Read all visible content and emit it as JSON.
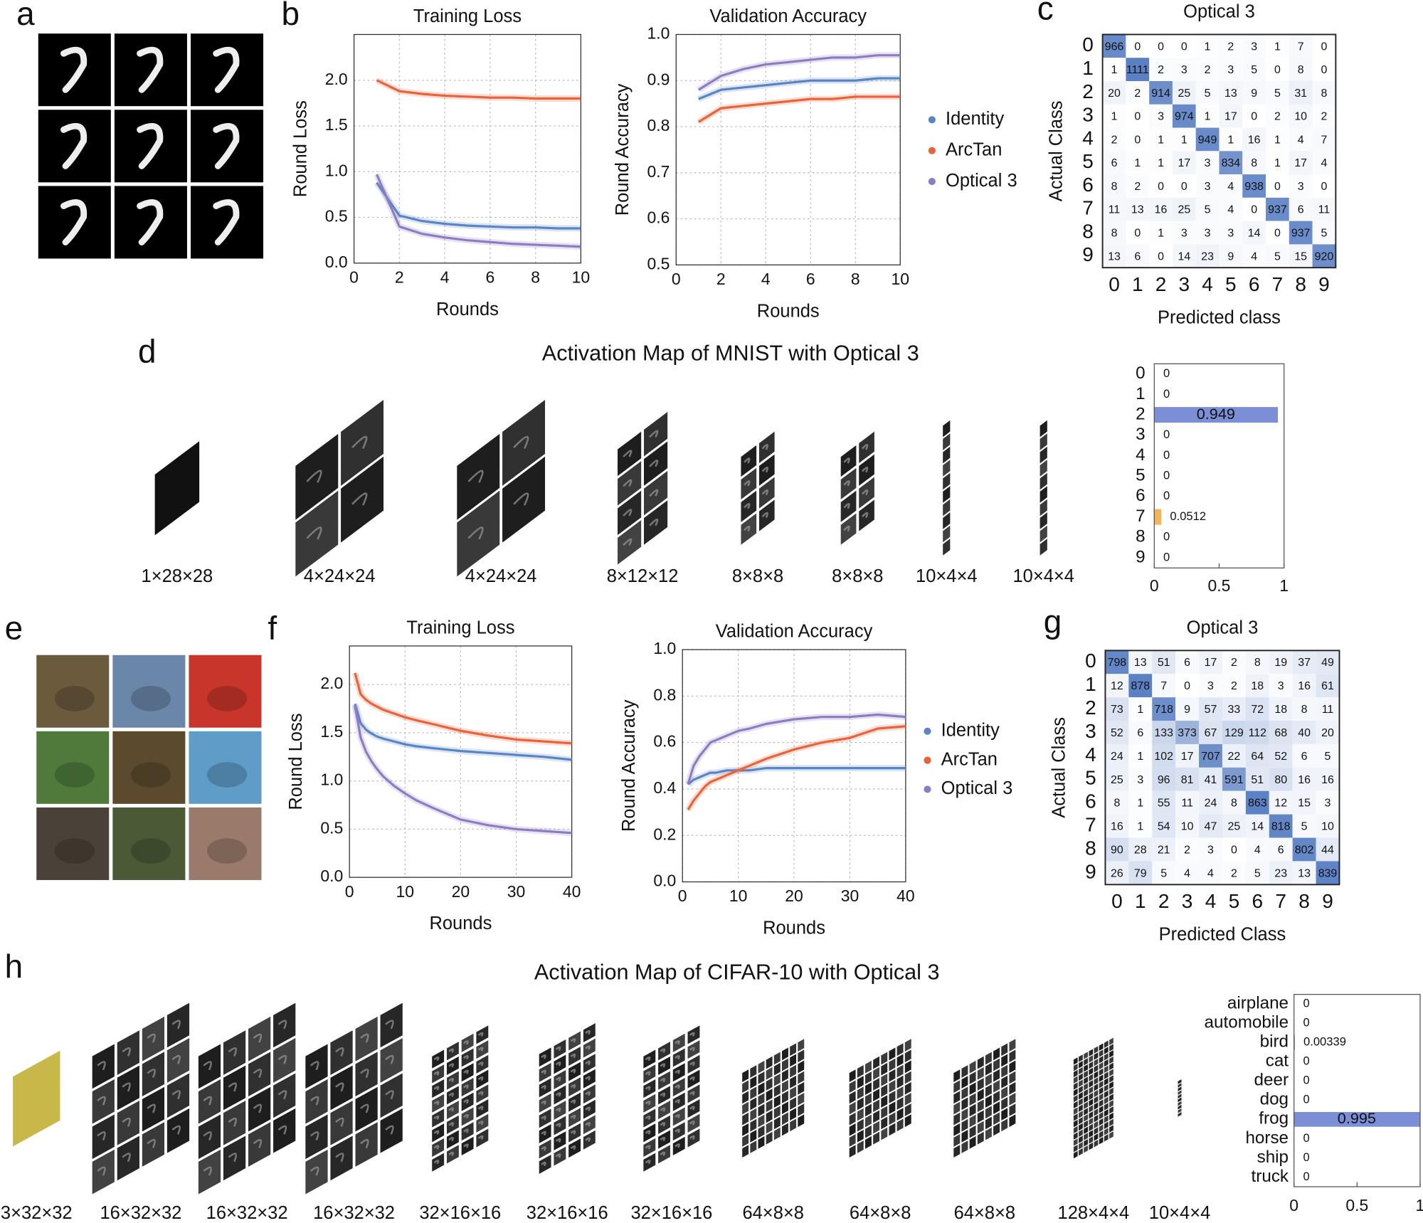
{
  "panel_labels": [
    "a",
    "b",
    "c",
    "d",
    "e",
    "f",
    "g",
    "h"
  ],
  "chart_data": [
    {
      "type": "line",
      "title": "Training Loss",
      "xlabel": "Rounds",
      "ylabel": "Round Loss",
      "x": [
        1,
        2,
        3,
        4,
        5,
        6,
        7,
        8,
        9,
        10
      ],
      "series": [
        {
          "color": "#5b84c4",
          "values": [
            0.88,
            0.52,
            0.46,
            0.43,
            0.41,
            0.4,
            0.39,
            0.39,
            0.38,
            0.38
          ]
        },
        {
          "color": "#e8623a",
          "values": [
            2.0,
            1.88,
            1.85,
            1.83,
            1.82,
            1.81,
            1.81,
            1.8,
            1.8,
            1.8
          ]
        },
        {
          "color": "#8e7cc3",
          "values": [
            0.97,
            0.4,
            0.32,
            0.28,
            0.25,
            0.23,
            0.21,
            0.2,
            0.19,
            0.18
          ]
        }
      ],
      "xlim": [
        0,
        10
      ],
      "xticks": [
        0,
        2,
        4,
        6,
        8,
        10
      ],
      "ylim": [
        0,
        2.5
      ],
      "yticks": [
        {
          "value": 0,
          "label": "0.0"
        },
        0.5,
        {
          "value": 1,
          "label": "1.0"
        },
        1.5,
        {
          "value": 2,
          "label": "2.0"
        }
      ],
      "grid": true
    },
    {
      "type": "line",
      "title": "Validation Accuracy",
      "xlabel": "Rounds",
      "ylabel": "Round Accuracy",
      "x": [
        1,
        2,
        3,
        4,
        5,
        6,
        7,
        8,
        9,
        10
      ],
      "series": [
        {
          "name": "Identity",
          "color": "#5b84c4",
          "values": [
            0.86,
            0.88,
            0.885,
            0.89,
            0.895,
            0.9,
            0.9,
            0.9,
            0.905,
            0.905
          ]
        },
        {
          "name": "ArcTan",
          "color": "#e8623a",
          "values": [
            0.81,
            0.84,
            0.845,
            0.85,
            0.855,
            0.86,
            0.86,
            0.865,
            0.865,
            0.865
          ]
        },
        {
          "name": "Optical 3",
          "color": "#8e7cc3",
          "values": [
            0.88,
            0.91,
            0.925,
            0.935,
            0.94,
            0.945,
            0.95,
            0.95,
            0.955,
            0.955
          ]
        }
      ],
      "xlim": [
        0,
        10
      ],
      "xticks": [
        0,
        2,
        4,
        6,
        8,
        10
      ],
      "ylim": [
        0.5,
        1.0
      ],
      "yticks": [
        0.5,
        0.6,
        0.7,
        0.8,
        0.9,
        {
          "value": 1,
          "label": "1.0"
        }
      ],
      "grid": true,
      "legend": "right"
    },
    {
      "type": "heatmap",
      "title": "Optical 3",
      "xlabel": "Predicted class",
      "ylabel": "Actual Class",
      "x_categories": [
        0,
        1,
        2,
        3,
        4,
        5,
        6,
        7,
        8,
        9
      ],
      "y_categories": [
        0,
        1,
        2,
        3,
        4,
        5,
        6,
        7,
        8,
        9
      ],
      "color": "#5b80c4",
      "values": [
        [
          966,
          0,
          0,
          0,
          1,
          2,
          3,
          1,
          7,
          0
        ],
        [
          1,
          1111,
          2,
          3,
          2,
          3,
          5,
          0,
          8,
          0
        ],
        [
          20,
          2,
          914,
          25,
          5,
          13,
          9,
          5,
          31,
          8
        ],
        [
          1,
          0,
          3,
          974,
          1,
          17,
          0,
          2,
          10,
          2
        ],
        [
          2,
          0,
          1,
          1,
          949,
          1,
          16,
          1,
          4,
          7
        ],
        [
          6,
          1,
          1,
          17,
          3,
          834,
          8,
          1,
          17,
          4
        ],
        [
          8,
          2,
          0,
          0,
          3,
          4,
          938,
          0,
          3,
          0
        ],
        [
          11,
          13,
          16,
          25,
          5,
          4,
          0,
          937,
          6,
          11
        ],
        [
          8,
          0,
          1,
          3,
          3,
          3,
          14,
          0,
          937,
          5
        ],
        [
          13,
          6,
          0,
          14,
          23,
          9,
          4,
          5,
          15,
          920
        ]
      ]
    },
    {
      "type": "hbar",
      "title": "Activation Map of MNIST with Optical 3",
      "layers": [
        "1×28×28",
        "4×24×24",
        "4×24×24",
        "8×12×12",
        "8×8×8",
        "8×8×8",
        "10×4×4",
        "10×4×4"
      ],
      "categories": [
        0,
        1,
        2,
        3,
        4,
        5,
        6,
        7,
        8,
        9
      ],
      "values": [
        0,
        0,
        0.949,
        0,
        0,
        0,
        0,
        0.0512,
        0,
        0
      ],
      "colors": [
        "#d4a35a",
        "#d4a35a",
        "#7b8ed6",
        "#d4a35a",
        "#d4a35a",
        "#d4a35a",
        "#d4a35a",
        "#f5b456",
        "#d4a35a",
        "#d4a35a"
      ],
      "xlim": [
        0,
        1
      ],
      "xticks": [
        0,
        0.5,
        1
      ]
    },
    {
      "type": "line",
      "title": "Training Loss",
      "xlabel": "Rounds",
      "ylabel": "Round Loss",
      "x": [
        1,
        2,
        3,
        4,
        5,
        6,
        8,
        10,
        12,
        15,
        20,
        25,
        30,
        35,
        40
      ],
      "series": [
        {
          "color": "#5b84c4",
          "values": [
            1.8,
            1.6,
            1.53,
            1.49,
            1.46,
            1.44,
            1.41,
            1.38,
            1.36,
            1.34,
            1.31,
            1.29,
            1.27,
            1.25,
            1.22
          ]
        },
        {
          "color": "#e8623a",
          "values": [
            2.12,
            1.9,
            1.84,
            1.8,
            1.77,
            1.74,
            1.7,
            1.66,
            1.63,
            1.59,
            1.52,
            1.47,
            1.43,
            1.41,
            1.39
          ]
        },
        {
          "color": "#8e7cc3",
          "values": [
            1.78,
            1.45,
            1.3,
            1.2,
            1.12,
            1.05,
            0.95,
            0.87,
            0.8,
            0.72,
            0.6,
            0.54,
            0.5,
            0.48,
            0.46
          ]
        }
      ],
      "xlim": [
        0,
        40
      ],
      "xticks": [
        0,
        10,
        20,
        30,
        40
      ],
      "ylim": [
        0,
        2.4
      ],
      "yticks": [
        {
          "value": 0,
          "label": "0.0"
        },
        0.5,
        {
          "value": 1,
          "label": "1.0"
        },
        1.5,
        {
          "value": 2,
          "label": "2.0"
        }
      ],
      "grid": true
    },
    {
      "type": "line",
      "title": "Validation Accuracy",
      "xlabel": "Rounds",
      "ylabel": "Round Accuracy",
      "x": [
        1,
        2,
        3,
        4,
        5,
        6,
        8,
        10,
        12,
        15,
        20,
        25,
        30,
        35,
        40
      ],
      "series": [
        {
          "name": "Identity",
          "color": "#5b84c4",
          "values": [
            0.42,
            0.44,
            0.45,
            0.46,
            0.47,
            0.47,
            0.48,
            0.48,
            0.48,
            0.49,
            0.49,
            0.49,
            0.49,
            0.49,
            0.49
          ]
        },
        {
          "name": "ArcTan",
          "color": "#e8623a",
          "values": [
            0.31,
            0.35,
            0.38,
            0.41,
            0.43,
            0.44,
            0.46,
            0.48,
            0.5,
            0.53,
            0.57,
            0.6,
            0.62,
            0.66,
            0.67
          ]
        },
        {
          "name": "Optical 3",
          "color": "#8e7cc3",
          "values": [
            0.42,
            0.5,
            0.54,
            0.57,
            0.6,
            0.61,
            0.63,
            0.65,
            0.66,
            0.68,
            0.7,
            0.71,
            0.71,
            0.72,
            0.71
          ]
        }
      ],
      "xlim": [
        0,
        40
      ],
      "xticks": [
        0,
        10,
        20,
        30,
        40
      ],
      "ylim": [
        0,
        1.0
      ],
      "yticks": [
        {
          "value": 0,
          "label": "0.0"
        },
        0.2,
        0.4,
        0.6,
        0.8,
        {
          "value": 1,
          "label": "1.0"
        }
      ],
      "grid": true,
      "legend": "right"
    },
    {
      "type": "heatmap",
      "title": "Optical 3",
      "xlabel": "Predicted Class",
      "ylabel": "Actual Class",
      "x_categories": [
        0,
        1,
        2,
        3,
        4,
        5,
        6,
        7,
        8,
        9
      ],
      "y_categories": [
        0,
        1,
        2,
        3,
        4,
        5,
        6,
        7,
        8,
        9
      ],
      "color": "#5b80c4",
      "values": [
        [
          798,
          13,
          51,
          6,
          17,
          2,
          8,
          19,
          37,
          49
        ],
        [
          12,
          878,
          7,
          0,
          3,
          2,
          18,
          3,
          16,
          61
        ],
        [
          73,
          1,
          718,
          9,
          57,
          33,
          72,
          18,
          8,
          11
        ],
        [
          52,
          6,
          133,
          373,
          67,
          129,
          112,
          68,
          40,
          20
        ],
        [
          24,
          1,
          102,
          17,
          707,
          22,
          64,
          52,
          6,
          5
        ],
        [
          25,
          3,
          96,
          81,
          41,
          591,
          51,
          80,
          16,
          16
        ],
        [
          8,
          1,
          55,
          11,
          24,
          8,
          863,
          12,
          15,
          3
        ],
        [
          16,
          1,
          54,
          10,
          47,
          25,
          14,
          818,
          5,
          10
        ],
        [
          90,
          28,
          21,
          2,
          3,
          0,
          4,
          6,
          802,
          44
        ],
        [
          26,
          79,
          5,
          4,
          4,
          2,
          5,
          23,
          13,
          839
        ]
      ]
    },
    {
      "type": "hbar",
      "title": "Activation Map of CIFAR-10 with Optical 3",
      "layers": [
        "3×32×32",
        "16×32×32",
        "16×32×32",
        "16×32×32",
        "32×16×16",
        "32×16×16",
        "32×16×16",
        "64×8×8",
        "64×8×8",
        "64×8×8",
        "128×4×4",
        "10×4×4"
      ],
      "categories": [
        "airplane",
        "automobile",
        "bird",
        "cat",
        "deer",
        "dog",
        "frog",
        "horse",
        "ship",
        "truck"
      ],
      "values": [
        0,
        0,
        0.00339,
        0,
        0,
        0,
        0.995,
        0,
        0,
        0
      ],
      "colors": [
        "#d4a35a",
        "#d4a35a",
        "#d4a35a",
        "#d4a35a",
        "#d4a35a",
        "#d4a35a",
        "#7b8ed6",
        "#d4a35a",
        "#d4a35a",
        "#d4a35a"
      ],
      "xlim": [
        0,
        1
      ],
      "xticks": [
        0,
        0.5,
        1
      ]
    }
  ]
}
